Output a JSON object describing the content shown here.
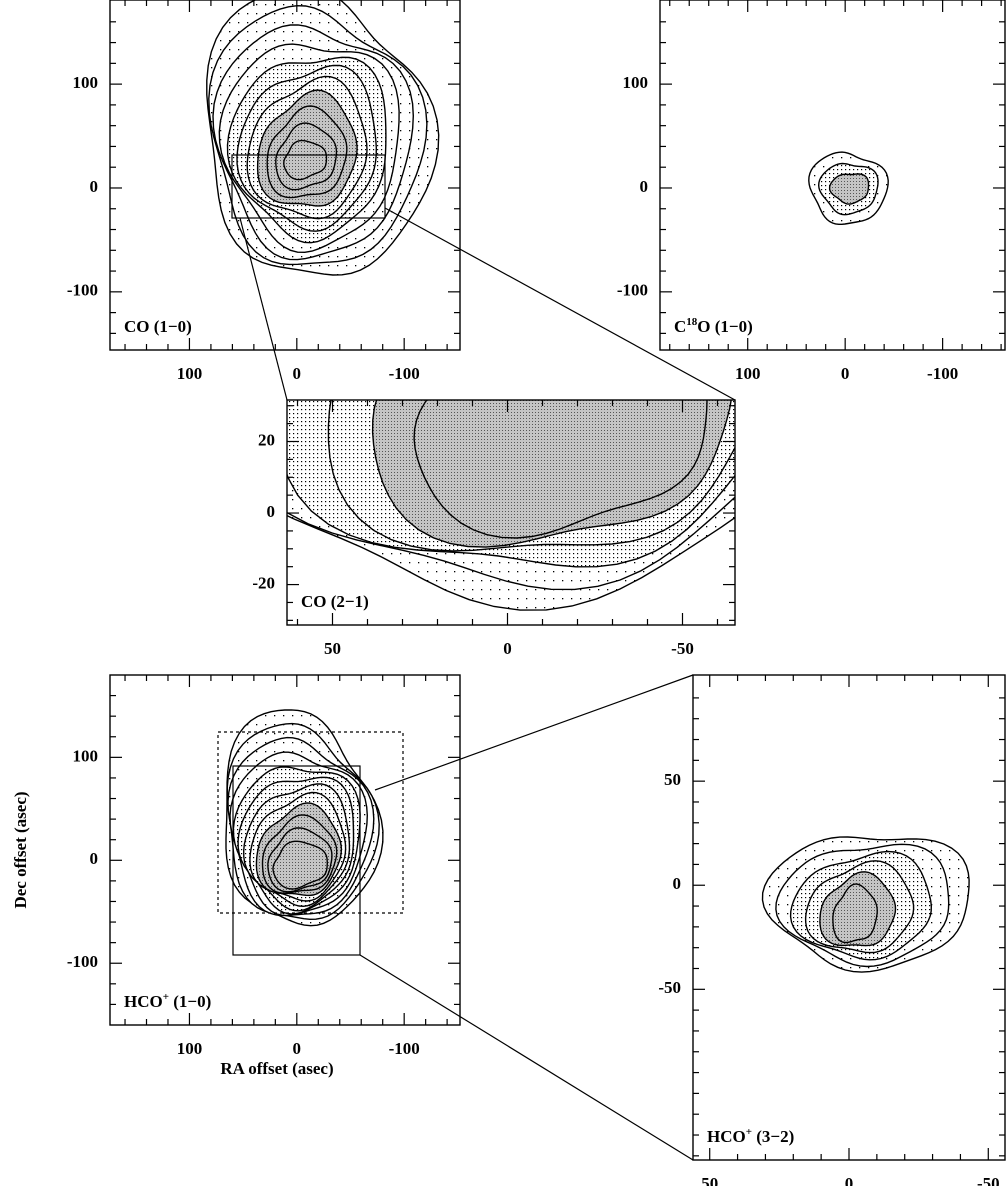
{
  "chart_data": [
    {
      "type": "contour",
      "label_parts": [
        {
          "text": "CO (1−0)"
        }
      ],
      "xlim": [
        174,
        -152
      ],
      "ylim": [
        181,
        -156
      ],
      "xticks": [
        100,
        0,
        -100
      ],
      "yticks": [
        100,
        0,
        -100
      ],
      "xminorticks": [
        160,
        140,
        120,
        80,
        60,
        40,
        20,
        -20,
        -40,
        -60,
        -80,
        -120,
        -140
      ],
      "yminorticks": [
        160,
        140,
        120,
        80,
        60,
        40,
        20,
        -20,
        -40,
        -60,
        -80,
        -120,
        -140
      ]
    },
    {
      "type": "contour",
      "label_parts": [
        {
          "text": "C"
        },
        {
          "text": "18",
          "sup": true
        },
        {
          "text": "O (1−0)"
        }
      ],
      "xlim": [
        190,
        -164
      ],
      "ylim": [
        181,
        -156
      ],
      "xticks": [
        100,
        0,
        -100
      ],
      "yticks": [
        100,
        0,
        -100
      ],
      "xminorticks": [
        180,
        160,
        140,
        120,
        80,
        60,
        40,
        20,
        -20,
        -40,
        -60,
        -80,
        -120,
        -140,
        -160
      ],
      "yminorticks": [
        160,
        140,
        120,
        80,
        60,
        40,
        20,
        -20,
        -40,
        -60,
        -80,
        -120,
        -140
      ]
    },
    {
      "type": "contour",
      "label_parts": [
        {
          "text": "CO (2−1)"
        }
      ],
      "xlim": [
        63,
        -65
      ],
      "ylim": [
        31.6,
        -31.3
      ],
      "xticks": [
        50,
        0,
        -50
      ],
      "yticks": [
        20,
        0,
        -20
      ],
      "xminorticks": [
        60,
        40,
        30,
        20,
        10,
        -10,
        -20,
        -30,
        -40,
        -60
      ],
      "yminorticks": [
        30,
        25,
        15,
        10,
        5,
        -5,
        -10,
        -15,
        -25,
        -30
      ]
    },
    {
      "type": "contour",
      "label_parts": [
        {
          "text": "HCO"
        },
        {
          "text": "+",
          "sup": true
        },
        {
          "text": " (1−0)"
        }
      ],
      "xlabel": "RA offset (asec)",
      "ylabel": "Dec offset (asec)",
      "xlim": [
        174,
        -152
      ],
      "ylim": [
        180,
        -160
      ],
      "xticks": [
        100,
        0,
        -100
      ],
      "yticks": [
        100,
        0,
        -100
      ],
      "xminorticks": [
        160,
        140,
        120,
        80,
        60,
        40,
        20,
        -20,
        -40,
        -60,
        -80,
        -120,
        -140
      ],
      "yminorticks": [
        160,
        140,
        120,
        80,
        60,
        40,
        20,
        -20,
        -40,
        -60,
        -80,
        -120,
        -140
      ]
    },
    {
      "type": "contour",
      "label_parts": [
        {
          "text": "HCO"
        },
        {
          "text": "+",
          "sup": true
        },
        {
          "text": " (3−2)"
        }
      ],
      "xlim": [
        56,
        -56
      ],
      "ylim": [
        101,
        -132
      ],
      "xticks": [
        50,
        0,
        -50
      ],
      "yticks": [
        50,
        0,
        -50
      ],
      "xminorticks": [
        40,
        30,
        20,
        10,
        -10,
        -20,
        -30,
        -40
      ],
      "yminorticks": [
        90,
        80,
        70,
        60,
        40,
        30,
        20,
        10,
        -10,
        -20,
        -30,
        -40,
        -60,
        -70,
        -80,
        -90,
        -100,
        -110,
        -120,
        -130
      ]
    }
  ]
}
